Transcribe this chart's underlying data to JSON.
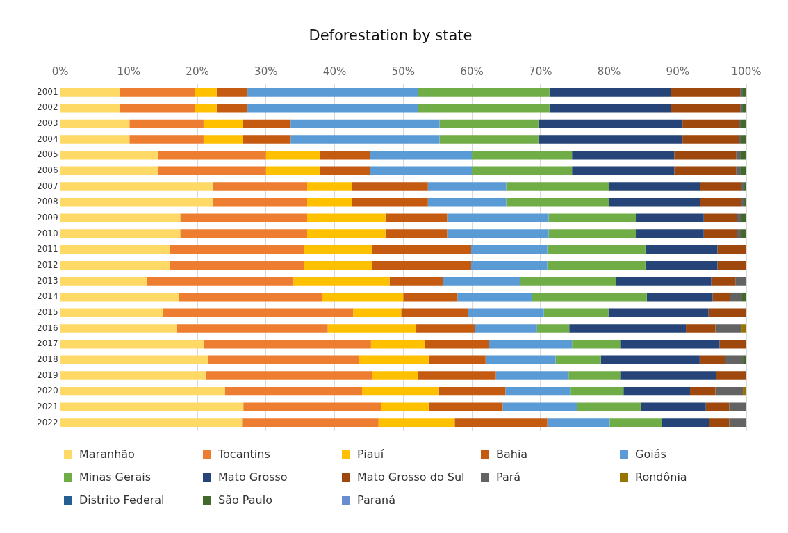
{
  "chart_data": {
    "type": "bar",
    "orientation": "horizontal",
    "stacked": true,
    "title": "Deforestation by state",
    "categories": [
      "2001",
      "2002",
      "2003",
      "2004",
      "2005",
      "2006",
      "2007",
      "2008",
      "2009",
      "2010",
      "2011",
      "2012",
      "2013",
      "2014",
      "2015",
      "2016",
      "2017",
      "2018",
      "2019",
      "2020",
      "2021",
      "2022"
    ],
    "xlim": [
      0,
      100
    ],
    "xticks": [
      {
        "value": 0,
        "label": "0%"
      },
      {
        "value": 10,
        "label": "10%"
      },
      {
        "value": 20,
        "label": "20%"
      },
      {
        "value": 30,
        "label": "30%"
      },
      {
        "value": 40,
        "label": "40%"
      },
      {
        "value": 50,
        "label": "50%"
      },
      {
        "value": 60,
        "label": "60%"
      },
      {
        "value": 70,
        "label": "70%"
      },
      {
        "value": 80,
        "label": "80%"
      },
      {
        "value": 90,
        "label": "90%"
      },
      {
        "value": 100,
        "label": "100%"
      }
    ],
    "grid": "x",
    "legend": "bottom",
    "series": [
      {
        "name": "Maranhão",
        "color": "#ffd966",
        "values": [
          8.7,
          8.7,
          10.1,
          10.1,
          14.3,
          14.3,
          22.2,
          22.2,
          17.5,
          17.5,
          16.0,
          16.0,
          12.6,
          17.3,
          15.0,
          17.0,
          21.0,
          21.5,
          21.2,
          24.0,
          26.7,
          26.5
        ]
      },
      {
        "name": "Tocantins",
        "color": "#ed7d31",
        "values": [
          10.9,
          10.9,
          10.8,
          10.8,
          15.7,
          15.7,
          13.8,
          13.8,
          18.5,
          18.5,
          19.5,
          19.5,
          21.4,
          20.9,
          27.7,
          22.0,
          24.3,
          22.0,
          24.3,
          20.0,
          20.1,
          19.9
        ]
      },
      {
        "name": "Piauí",
        "color": "#ffc000",
        "values": [
          3.2,
          3.2,
          5.7,
          5.7,
          7.9,
          7.9,
          6.5,
          6.5,
          11.4,
          11.4,
          10.0,
          10.0,
          14.0,
          11.8,
          7.0,
          12.9,
          7.9,
          10.2,
          6.7,
          11.2,
          6.9,
          11.1
        ]
      },
      {
        "name": "Bahia",
        "color": "#c55a11",
        "values": [
          4.5,
          4.5,
          7.0,
          7.0,
          7.3,
          7.3,
          11.1,
          11.1,
          9.0,
          9.0,
          14.4,
          14.4,
          7.8,
          7.9,
          9.8,
          8.6,
          9.3,
          8.3,
          11.3,
          9.7,
          10.8,
          13.5
        ]
      },
      {
        "name": "Goiás",
        "color": "#5b9bd5",
        "values": [
          24.8,
          24.8,
          21.7,
          21.7,
          14.8,
          14.8,
          11.4,
          11.4,
          14.8,
          14.8,
          11.1,
          11.1,
          11.2,
          10.9,
          11.0,
          9.0,
          12.1,
          10.2,
          10.6,
          9.4,
          10.8,
          9.1
        ]
      },
      {
        "name": "Minas Gerais",
        "color": "#70ad47",
        "values": [
          19.2,
          19.2,
          14.4,
          14.4,
          14.6,
          14.6,
          15.0,
          15.0,
          12.7,
          12.7,
          14.3,
          14.3,
          14.0,
          16.7,
          9.4,
          4.7,
          7.0,
          6.6,
          7.5,
          7.8,
          9.3,
          7.6
        ]
      },
      {
        "name": "Mato Grosso",
        "color": "#264478",
        "values": [
          17.7,
          17.7,
          21.0,
          21.0,
          14.9,
          14.9,
          13.3,
          13.3,
          9.9,
          9.9,
          10.5,
          10.5,
          13.9,
          9.6,
          14.6,
          17.0,
          14.5,
          14.4,
          14.0,
          9.7,
          9.5,
          6.9
        ]
      },
      {
        "name": "Mato Grosso do Sul",
        "color": "#9e480e",
        "values": [
          10.1,
          10.1,
          8.2,
          8.2,
          9.0,
          9.0,
          5.9,
          5.9,
          4.8,
          4.8,
          4.2,
          4.2,
          3.5,
          2.5,
          5.5,
          4.3,
          3.9,
          3.7,
          4.4,
          3.7,
          3.4,
          2.9
        ]
      },
      {
        "name": "Pará",
        "color": "#636363",
        "values": [
          0.3,
          0.3,
          0.3,
          0.3,
          0.6,
          0.6,
          0.5,
          0.5,
          0.6,
          0.6,
          0,
          0,
          1.6,
          1.7,
          0,
          3.8,
          0,
          2.6,
          0,
          4.0,
          2.5,
          2.5
        ]
      },
      {
        "name": "Rondônia",
        "color": "#997300",
        "values": [
          0,
          0,
          0,
          0,
          0,
          0,
          0,
          0,
          0,
          0,
          0,
          0,
          0,
          0,
          0,
          0.7,
          0,
          0,
          0,
          0.5,
          0,
          0
        ]
      },
      {
        "name": "Distrito Federal",
        "color": "#255e91",
        "values": [
          0,
          0,
          0,
          0,
          0,
          0,
          0,
          0,
          0,
          0,
          0,
          0,
          0,
          0,
          0,
          0,
          0,
          0,
          0,
          0,
          0,
          0
        ]
      },
      {
        "name": "São Paulo",
        "color": "#43682b",
        "values": [
          0.6,
          0.6,
          0.8,
          0.8,
          0.9,
          0.9,
          0.3,
          0.3,
          0.8,
          0.8,
          0,
          0,
          0,
          0.7,
          0,
          0,
          0,
          0.5,
          0,
          0,
          0,
          0
        ]
      },
      {
        "name": "Paraná",
        "color": "#698ed0",
        "values": [
          0,
          0,
          0,
          0,
          0,
          0,
          0,
          0,
          0,
          0,
          0,
          0,
          0,
          0,
          0,
          0,
          0,
          0,
          0,
          0,
          0,
          0
        ]
      }
    ]
  }
}
